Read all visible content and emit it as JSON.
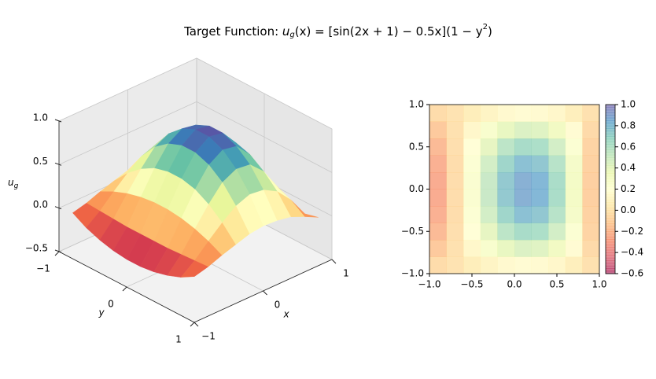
{
  "chart_data": {
    "type": "surface3d",
    "title": [
      "Target Function: ",
      "u",
      "g",
      "(x) = [sin(2x + 1) − 0.5x](1 − y",
      "2",
      ")"
    ],
    "xlabel": "x",
    "ylabel": "y",
    "zlabel": [
      "u",
      "g"
    ],
    "colormap": "Spectral",
    "x": [
      -0.9,
      -0.7,
      -0.5,
      -0.3,
      -0.1,
      0.1,
      0.3,
      0.5,
      0.7,
      0.9
    ],
    "y": [
      -0.9,
      -0.7,
      -0.5,
      -0.3,
      -0.1,
      0.1,
      0.3,
      0.5,
      0.7,
      0.9
    ],
    "z": [
      [
        -0.05,
        -0.01,
        0.05,
        0.1,
        0.15,
        0.17,
        0.16,
        0.13,
        0.06,
        -0.02
      ],
      [
        -0.14,
        -0.02,
        0.13,
        0.27,
        0.39,
        0.45,
        0.43,
        0.34,
        0.17,
        -0.06
      ],
      [
        -0.2,
        -0.03,
        0.19,
        0.4,
        0.58,
        0.66,
        0.64,
        0.49,
        0.24,
        -0.09
      ],
      [
        -0.24,
        -0.04,
        0.23,
        0.49,
        0.7,
        0.8,
        0.77,
        0.6,
        0.3,
        -0.1
      ],
      [
        -0.26,
        -0.04,
        0.25,
        0.53,
        0.76,
        0.87,
        0.84,
        0.65,
        0.32,
        -0.11
      ],
      [
        -0.26,
        -0.04,
        0.25,
        0.53,
        0.76,
        0.87,
        0.84,
        0.65,
        0.32,
        -0.11
      ],
      [
        -0.24,
        -0.04,
        0.23,
        0.49,
        0.7,
        0.8,
        0.77,
        0.6,
        0.3,
        -0.1
      ],
      [
        -0.2,
        -0.03,
        0.19,
        0.4,
        0.58,
        0.66,
        0.64,
        0.49,
        0.24,
        -0.09
      ],
      [
        -0.14,
        -0.02,
        0.13,
        0.27,
        0.39,
        0.45,
        0.43,
        0.34,
        0.17,
        -0.06
      ],
      [
        -0.05,
        -0.01,
        0.05,
        0.1,
        0.15,
        0.17,
        0.16,
        0.13,
        0.06,
        -0.02
      ]
    ],
    "xlim": [
      -1,
      1
    ],
    "ylim": [
      -1,
      1
    ],
    "zlim": [
      -0.5,
      1.0
    ],
    "xticks": [
      {
        "value": -1,
        "label": "−1"
      },
      0,
      1
    ],
    "yticks": [
      {
        "value": -1,
        "label": "−1"
      },
      0,
      1
    ],
    "zticks": [
      {
        "value": -0.5,
        "label": "−0.5"
      },
      {
        "value": 0,
        "label": "0.0"
      },
      0.5,
      {
        "value": 1,
        "label": "1.0"
      }
    ],
    "heatmap": {
      "alpha": 0.6,
      "xlim": [
        -1,
        1
      ],
      "ylim": [
        -1,
        1
      ],
      "xticks": [
        {
          "value": -1,
          "label": "−1.0"
        },
        {
          "value": -0.5,
          "label": "−0.5"
        },
        {
          "value": 0,
          "label": "0.0"
        },
        0.5,
        {
          "value": 1,
          "label": "1.0"
        }
      ],
      "yticks": [
        {
          "value": -1,
          "label": "−1.0"
        },
        {
          "value": -0.5,
          "label": "−0.5"
        },
        {
          "value": 0,
          "label": "0.0"
        },
        0.5,
        {
          "value": 1,
          "label": "1.0"
        }
      ],
      "colorbar": {
        "clim": [
          -0.6,
          1.0
        ],
        "ticks": [
          {
            "value": -0.6,
            "label": "−0.6"
          },
          {
            "value": -0.4,
            "label": "−0.4"
          },
          {
            "value": -0.2,
            "label": "−0.2"
          },
          {
            "value": 0,
            "label": "0.0"
          },
          0.2,
          0.4,
          0.6,
          0.8,
          {
            "value": 1,
            "label": "1.0"
          }
        ]
      }
    }
  }
}
